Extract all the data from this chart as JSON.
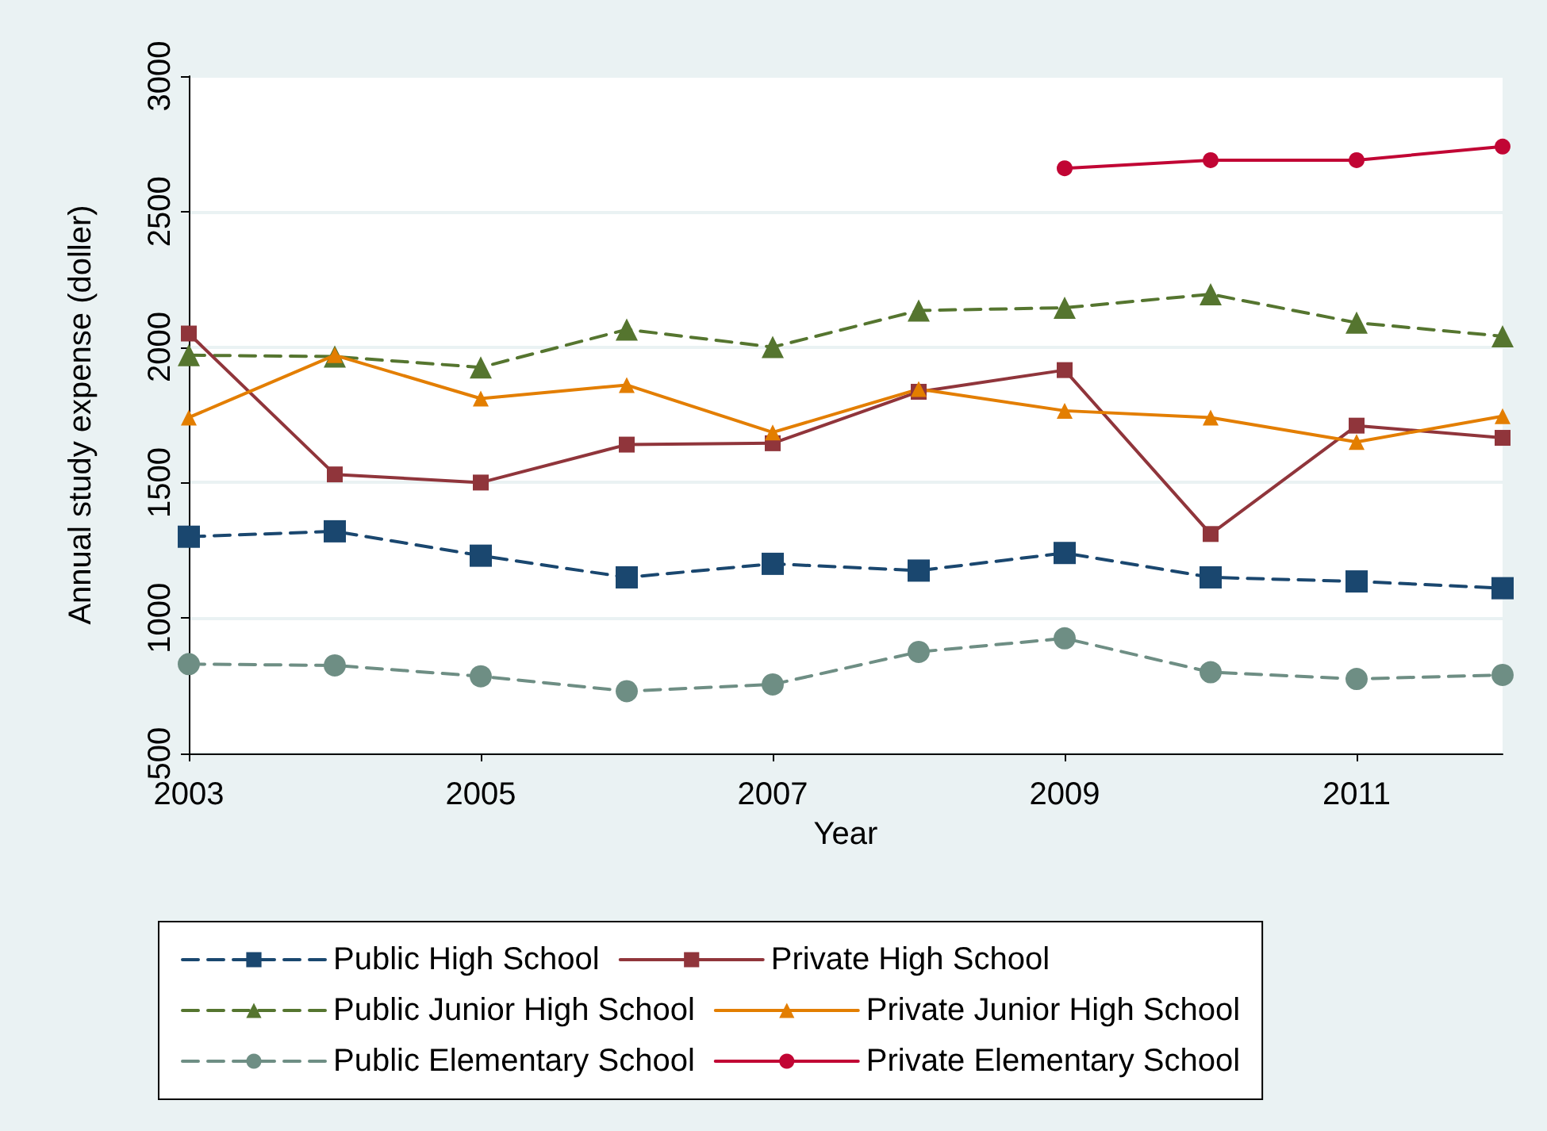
{
  "chart_data": {
    "type": "line",
    "xlabel": "Year",
    "ylabel": "Annual study expense (doller)",
    "x": [
      2003,
      2004,
      2005,
      2006,
      2007,
      2008,
      2009,
      2010,
      2011,
      2012
    ],
    "xlim": [
      2003,
      2012
    ],
    "xticks": [
      2003,
      2005,
      2007,
      2009,
      2011
    ],
    "ylim": [
      500,
      3000
    ],
    "yticks": [
      500,
      1000,
      1500,
      2000,
      2500,
      3000
    ],
    "grid": "y",
    "legend": "bottom",
    "series": [
      {
        "name": "Public High School",
        "color": "#1a476f",
        "marker": "square",
        "line_style": "dashed",
        "values": [
          1300,
          1320,
          1230,
          1150,
          1200,
          1175,
          1240,
          1150,
          1135,
          1110
        ]
      },
      {
        "name": "Private High School",
        "color": "#90353b",
        "marker": "square",
        "line_style": "solid",
        "values": [
          2050,
          1530,
          1500,
          1640,
          1645,
          1835,
          1915,
          1310,
          1710,
          1665
        ]
      },
      {
        "name": "Public Junior High School",
        "color": "#55752f",
        "marker": "triangle",
        "line_style": "dashed",
        "values": [
          1970,
          1965,
          1925,
          2065,
          2000,
          2135,
          2145,
          2195,
          2090,
          2040
        ]
      },
      {
        "name": "Private Junior High School",
        "color": "#e37e00",
        "marker": "triangle",
        "line_style": "solid",
        "values": [
          1740,
          1970,
          1810,
          1860,
          1685,
          1845,
          1765,
          1740,
          1650,
          1745
        ]
      },
      {
        "name": "Public Elementary School",
        "color": "#6e8e84",
        "marker": "circle",
        "line_style": "dashed",
        "values": [
          830,
          825,
          785,
          730,
          755,
          875,
          925,
          800,
          775,
          790
        ]
      },
      {
        "name": "Private Elementary School",
        "color": "#c10534",
        "marker": "circle",
        "line_style": "solid",
        "values": [
          null,
          null,
          null,
          null,
          null,
          null,
          2660,
          2690,
          2690,
          2740
        ]
      }
    ]
  }
}
